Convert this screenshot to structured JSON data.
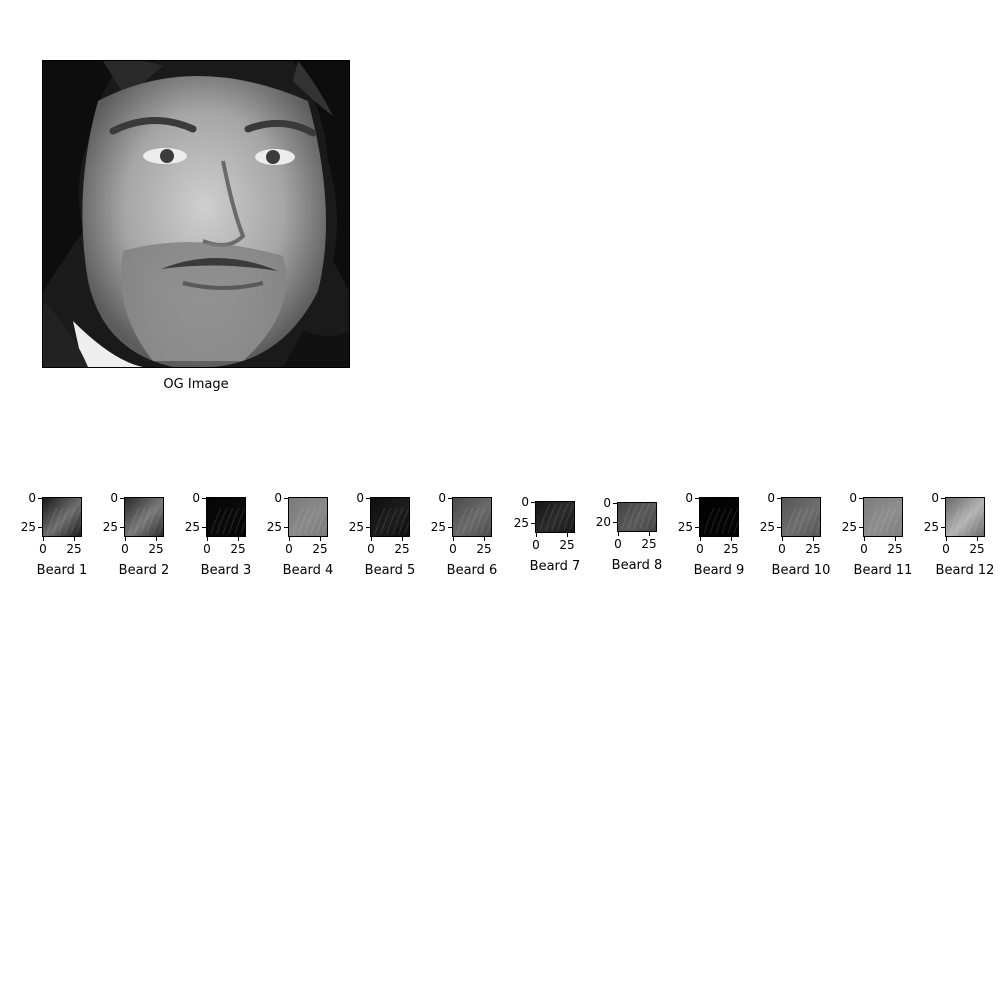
{
  "main_image": {
    "caption": "OG Image"
  },
  "patches": [
    {
      "label": "Beard 1",
      "y_ticks": [
        "0",
        "25"
      ],
      "x_ticks": [
        "0",
        "25"
      ],
      "tone": "#6f6f6f",
      "dark": "#1a1a1a"
    },
    {
      "label": "Beard 2",
      "y_ticks": [
        "0",
        "25"
      ],
      "x_ticks": [
        "0",
        "25"
      ],
      "tone": "#7a7a7a",
      "dark": "#2a2a2a"
    },
    {
      "label": "Beard 3",
      "y_ticks": [
        "0",
        "25"
      ],
      "x_ticks": [
        "0",
        "25"
      ],
      "tone": "#0a0a0a",
      "dark": "#050505"
    },
    {
      "label": "Beard 4",
      "y_ticks": [
        "0",
        "25"
      ],
      "x_ticks": [
        "0",
        "25"
      ],
      "tone": "#8a8a8a",
      "dark": "#7a7a7a"
    },
    {
      "label": "Beard 5",
      "y_ticks": [
        "0",
        "25"
      ],
      "x_ticks": [
        "0",
        "25"
      ],
      "tone": "#1e1e1e",
      "dark": "#0d0d0d"
    },
    {
      "label": "Beard 6",
      "y_ticks": [
        "0",
        "25"
      ],
      "x_ticks": [
        "0",
        "25"
      ],
      "tone": "#6a6a6a",
      "dark": "#4a4a4a"
    },
    {
      "label": "Beard 7",
      "y_ticks": [
        "0",
        "25"
      ],
      "x_ticks": [
        "0",
        "25"
      ],
      "tone": "#2c2c2c",
      "dark": "#161616"
    },
    {
      "label": "Beard 8",
      "y_ticks": [
        "0",
        "20"
      ],
      "x_ticks": [
        "0",
        "25"
      ],
      "tone": "#5a5a5a",
      "dark": "#444444"
    },
    {
      "label": "Beard 9",
      "y_ticks": [
        "0",
        "25"
      ],
      "x_ticks": [
        "0",
        "25"
      ],
      "tone": "#040404",
      "dark": "#020202"
    },
    {
      "label": "Beard 10",
      "y_ticks": [
        "0",
        "25"
      ],
      "x_ticks": [
        "0",
        "25"
      ],
      "tone": "#6e6e6e",
      "dark": "#555555"
    },
    {
      "label": "Beard 11",
      "y_ticks": [
        "0",
        "25"
      ],
      "x_ticks": [
        "0",
        "25"
      ],
      "tone": "#8e8e8e",
      "dark": "#7c7c7c"
    },
    {
      "label": "Beard 12",
      "y_ticks": [
        "0",
        "25"
      ],
      "x_ticks": [
        "0",
        "25"
      ],
      "tone": "#b4b4b4",
      "dark": "#6a6a6a"
    }
  ]
}
